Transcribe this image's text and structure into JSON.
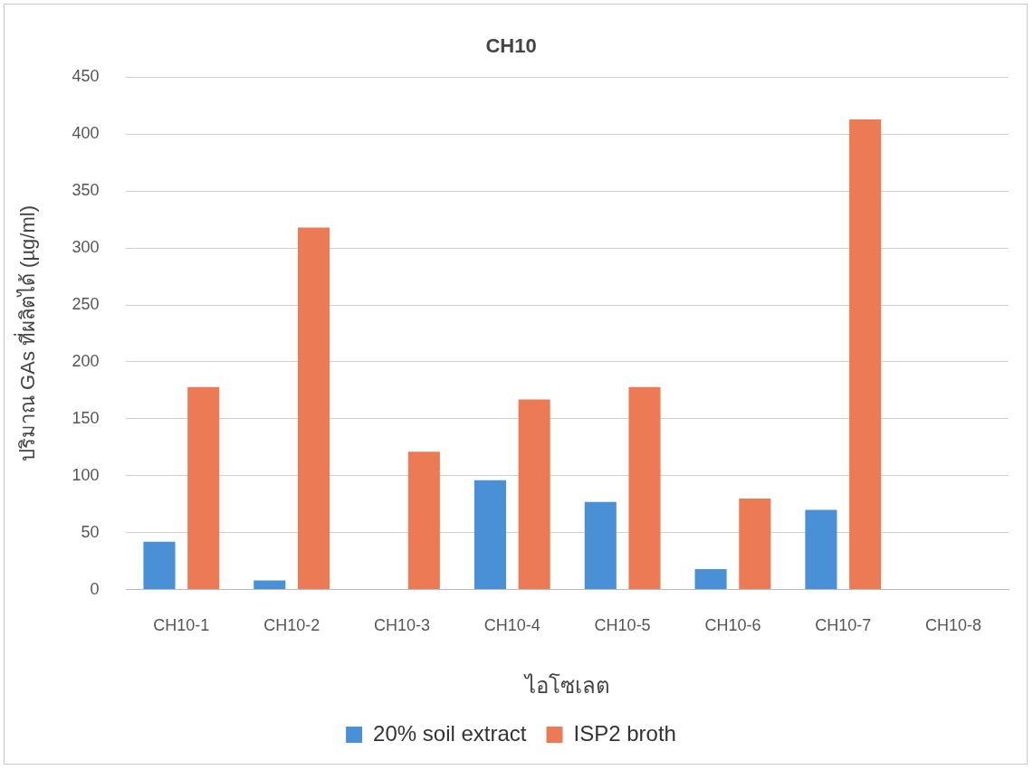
{
  "chart_data": {
    "type": "bar",
    "title": "CH10",
    "xlabel": "ไอโซเลต",
    "ylabel": "ปริมาณ GAs ที่ผลิตได้ (µg/ml)",
    "categories": [
      "CH10-1",
      "CH10-2",
      "CH10-3",
      "CH10-4",
      "CH10-5",
      "CH10-6",
      "CH10-7",
      "CH10-8"
    ],
    "series": [
      {
        "name": "20% soil extract",
        "color": "#4a90d6",
        "values": [
          42,
          8,
          0,
          96,
          77,
          18,
          70,
          0
        ]
      },
      {
        "name": "ISP2 broth",
        "color": "#ec7b55",
        "values": [
          178,
          318,
          121,
          167,
          178,
          80,
          413,
          0
        ]
      }
    ],
    "ylim": [
      0,
      450
    ],
    "yticks": [
      0,
      50,
      100,
      150,
      200,
      250,
      300,
      350,
      400,
      450
    ],
    "grid": "y",
    "legend": "bottom"
  }
}
